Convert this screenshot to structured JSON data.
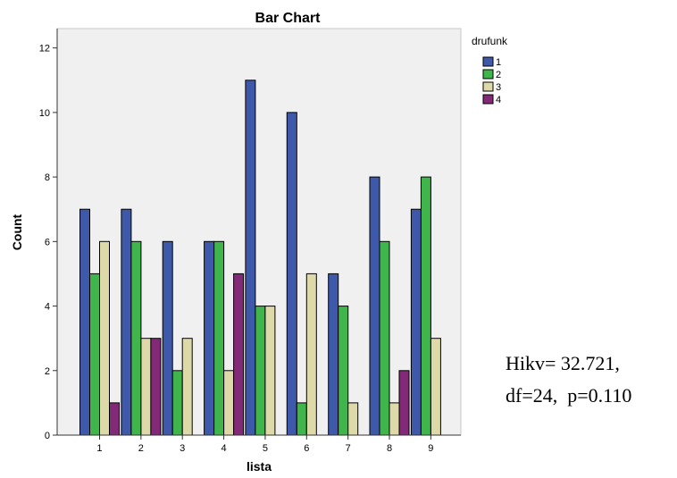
{
  "chart_data": {
    "type": "bar",
    "title": "Bar Chart",
    "xlabel": "lista",
    "ylabel": "Count",
    "categories": [
      "1",
      "2",
      "3",
      "4",
      "5",
      "6",
      "7",
      "8",
      "9"
    ],
    "ylim": [
      0,
      12.6
    ],
    "yticks": [
      0,
      2,
      4,
      6,
      8,
      10,
      12
    ],
    "grid": false,
    "legend_title": "drufunk",
    "legend_position": "top-right",
    "series": [
      {
        "name": "1",
        "color": "#3e59a9",
        "values": [
          7,
          7,
          6,
          6,
          11,
          10,
          5,
          8,
          7
        ]
      },
      {
        "name": "2",
        "color": "#3fb54b",
        "values": [
          5,
          6,
          2,
          6,
          4,
          1,
          4,
          6,
          8
        ]
      },
      {
        "name": "3",
        "color": "#ddd9a8",
        "values": [
          6,
          3,
          3,
          2,
          4,
          5,
          1,
          1,
          3
        ]
      },
      {
        "name": "4",
        "color": "#822a78",
        "values": [
          1,
          3,
          0,
          5,
          0,
          0,
          0,
          2,
          0
        ]
      }
    ],
    "plot_background": "#f0f0f0"
  },
  "annotation": {
    "line1": "Hikv= 32.721,",
    "line2": "df=24,  p=0.110"
  }
}
